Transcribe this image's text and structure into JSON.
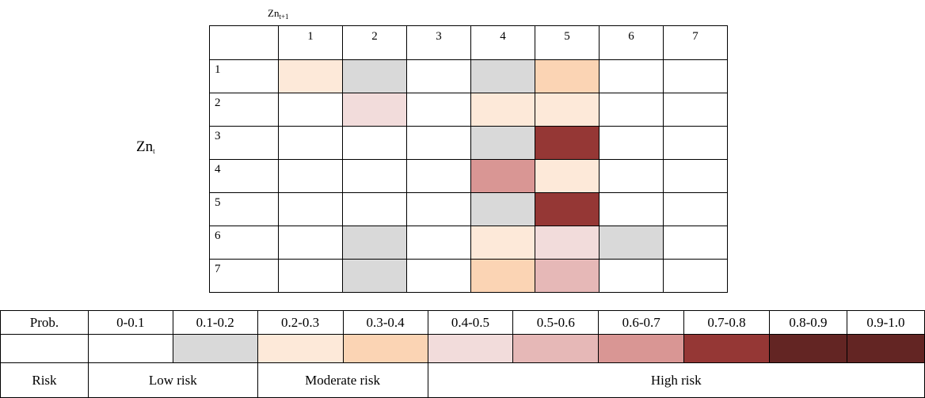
{
  "chart_data": {
    "type": "heatmap",
    "x_title": "Zn",
    "x_title_sub": "t+1",
    "y_title": "Zn",
    "y_title_sub": "t",
    "x": [
      "1",
      "2",
      "3",
      "4",
      "5",
      "6",
      "7"
    ],
    "y": [
      "1",
      "2",
      "3",
      "4",
      "5",
      "6",
      "7"
    ],
    "bin_colors": [
      "#ffffff",
      "#d9d9d9",
      "#fde9d9",
      "#fbd4b4",
      "#f2dcdb",
      "#e6b8b7",
      "#d99694",
      "#953735",
      "#632523",
      "#632523"
    ],
    "cells": [
      [
        2,
        1,
        0,
        1,
        3,
        0,
        0
      ],
      [
        0,
        4,
        0,
        2,
        2,
        0,
        0
      ],
      [
        0,
        0,
        0,
        1,
        7,
        0,
        0
      ],
      [
        0,
        0,
        0,
        6,
        2,
        0,
        0
      ],
      [
        0,
        0,
        0,
        1,
        7,
        0,
        0
      ],
      [
        0,
        1,
        0,
        2,
        4,
        1,
        0
      ],
      [
        0,
        1,
        0,
        3,
        5,
        0,
        0
      ]
    ]
  },
  "legend": {
    "prob_label": "Prob.",
    "bins": [
      "0-0.1",
      "0.1-0.2",
      "0.2-0.3",
      "0.3-0.4",
      "0.4-0.5",
      "0.5-0.6",
      "0.6-0.7",
      "0.7-0.8",
      "0.8-0.9",
      "0.9-1.0"
    ],
    "risk_label": "Risk",
    "risk_groups": [
      {
        "label": "Low risk",
        "span": 2
      },
      {
        "label": "Moderate risk",
        "span": 2
      },
      {
        "label": "High risk",
        "span": 6
      }
    ]
  }
}
